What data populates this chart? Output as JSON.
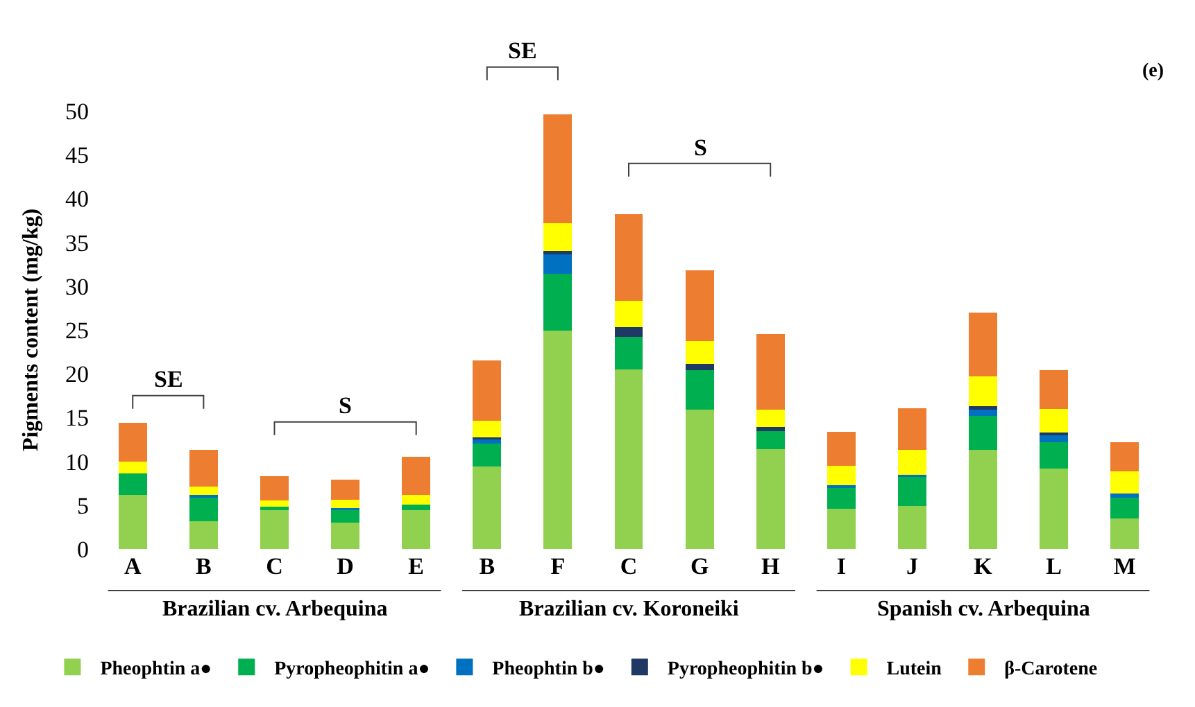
{
  "chart_data": {
    "type": "bar",
    "stacked": true,
    "categories": [
      "A",
      "B",
      "C",
      "D",
      "E",
      "B",
      "F",
      "C",
      "G",
      "H",
      "I",
      "J",
      "K",
      "L",
      "M"
    ],
    "ylabel": "Pigments content (mg/kg)",
    "ylim": [
      0,
      50
    ],
    "yticks": [
      0,
      5,
      10,
      15,
      20,
      25,
      30,
      35,
      40,
      45,
      50
    ],
    "legend": "bottom",
    "annotations": [
      "(e)",
      "SE",
      "S",
      "SE",
      "S",
      "Brazilian cv. Arbequina",
      "Brazilian cv. Koroneiki",
      "Spanish cv. Arbequina"
    ],
    "series": [
      {
        "name": "Pheophtin a●",
        "color": "#92d050",
        "values": [
          6.2,
          3.2,
          4.4,
          3.0,
          4.4,
          9.4,
          24.9,
          20.5,
          15.9,
          11.4,
          4.6,
          4.9,
          11.3,
          9.2,
          3.5
        ]
      },
      {
        "name": "Pyropheophitin a●",
        "color": "#00b050",
        "values": [
          2.4,
          2.8,
          0.4,
          1.5,
          0.7,
          2.6,
          6.5,
          3.7,
          4.5,
          2.2,
          2.5,
          3.4,
          3.9,
          3.0,
          2.5
        ]
      },
      {
        "name": "Pheophtin b●",
        "color": "#0070c0",
        "values": [
          0,
          0.2,
          0,
          0.2,
          0,
          0.5,
          2.2,
          0,
          0,
          0,
          0.2,
          0.2,
          0.7,
          0.8,
          0.3
        ]
      },
      {
        "name": "Pyropheophitin b●",
        "color": "#1f3864",
        "values": [
          0,
          0,
          0,
          0,
          0,
          0.2,
          0.4,
          1.1,
          0.7,
          0.3,
          0,
          0,
          0.4,
          0.3,
          0
        ]
      },
      {
        "name": "Lutein",
        "color": "#ffff00",
        "values": [
          1.4,
          0.9,
          0.7,
          0.9,
          1.1,
          1.9,
          3.2,
          3.0,
          2.6,
          2.0,
          2.2,
          2.8,
          3.4,
          2.7,
          2.6
        ]
      },
      {
        "name": "β-Carotene",
        "color": "#ed7d31",
        "values": [
          4.4,
          4.2,
          2.8,
          2.3,
          4.3,
          6.9,
          12.4,
          9.9,
          8.1,
          8.6,
          3.9,
          4.8,
          7.3,
          4.4,
          3.3
        ]
      }
    ]
  }
}
